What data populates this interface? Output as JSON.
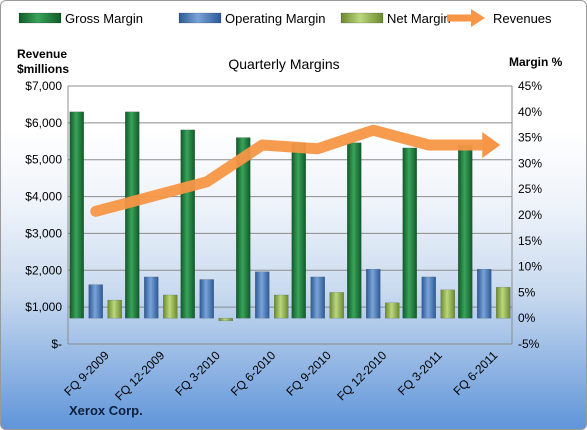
{
  "chart_data": {
    "type": "bar",
    "title": "Quarterly Margins",
    "footer": "Xerox Corp.",
    "categories": [
      "FQ 9-2009",
      "FQ 12-2009",
      "FQ 3-2010",
      "FQ 6-2010",
      "FQ 9-2010",
      "FQ 12-2010",
      "FQ 3-2011",
      "FQ 6-2011"
    ],
    "left_axis": {
      "label_line1": "Revenue",
      "label_line2": "$millions",
      "range": [
        0,
        7000
      ],
      "ticks": [
        0,
        1000,
        2000,
        3000,
        4000,
        5000,
        6000,
        7000
      ],
      "tick_labels": [
        "$-",
        "$1,000",
        "$2,000",
        "$3,000",
        "$4,000",
        "$5,000",
        "$6,000",
        "$7,000"
      ]
    },
    "right_axis": {
      "label": "Margin %",
      "range": [
        -5,
        45
      ],
      "ticks": [
        -5,
        0,
        5,
        10,
        15,
        20,
        25,
        30,
        35,
        40,
        45
      ],
      "tick_labels": [
        "-5%",
        "0%",
        "5%",
        "10%",
        "15%",
        "20%",
        "25%",
        "30%",
        "35%",
        "40%",
        "45%"
      ]
    },
    "series": [
      {
        "name": "Gross Margin",
        "type": "bar",
        "axis": "right",
        "color": "#1f7a3c",
        "values": [
          40,
          40,
          36.5,
          35,
          34,
          34,
          33,
          33.5
        ]
      },
      {
        "name": "Operating Margin",
        "type": "bar",
        "axis": "right",
        "color": "#4f81bd",
        "values": [
          6.5,
          8,
          7.5,
          9,
          8,
          9.5,
          8,
          9.5
        ]
      },
      {
        "name": "Net Margin",
        "type": "bar",
        "axis": "right",
        "color": "#9bbb59",
        "values": [
          3.5,
          4.5,
          -0.5,
          4.5,
          5,
          3,
          5.5,
          6
        ]
      },
      {
        "name": "Revenues",
        "type": "line",
        "axis": "left",
        "color": "#f79646",
        "values": [
          3600,
          4000,
          4400,
          5400,
          5300,
          5800,
          5400,
          5400
        ]
      }
    ],
    "grid": true,
    "legend": "top"
  }
}
